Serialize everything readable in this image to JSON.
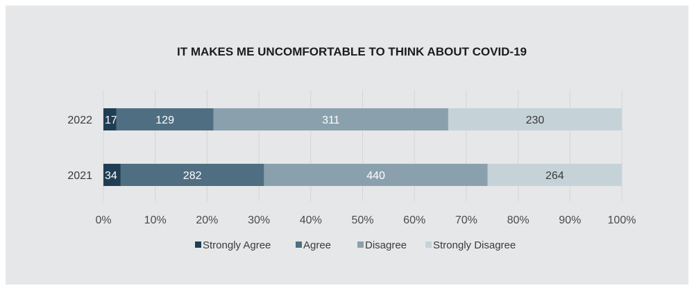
{
  "chart_data": {
    "type": "bar",
    "orientation": "horizontal",
    "stacked": true,
    "normalized": true,
    "title": "IT MAKES ME UNCOMFORTABLE TO THINK ABOUT COVID-19",
    "categories": [
      "2022",
      "2021"
    ],
    "series": [
      {
        "name": "Strongly Agree",
        "values": [
          17,
          34
        ],
        "color": "#1f3e53"
      },
      {
        "name": "Agree",
        "values": [
          129,
          282
        ],
        "color": "#4f6e82"
      },
      {
        "name": "Disagree",
        "values": [
          311,
          440
        ],
        "color": "#8aa1ad"
      },
      {
        "name": "Strongly Disagree",
        "values": [
          230,
          264
        ],
        "color": "#c5d3d9"
      }
    ],
    "x_ticks": [
      "0%",
      "10%",
      "20%",
      "30%",
      "40%",
      "50%",
      "60%",
      "70%",
      "80%",
      "90%",
      "100%"
    ],
    "xlim": [
      0,
      100
    ],
    "grid": true,
    "legend_position": "bottom"
  }
}
